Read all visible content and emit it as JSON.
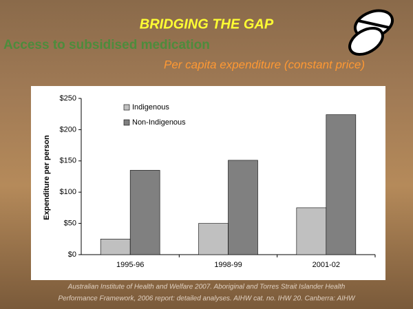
{
  "header": {
    "title": "BRIDGING THE GAP",
    "subtitle": "Access to subsidised medication",
    "tagline": "Per capita expenditure (constant price)"
  },
  "chart_data": {
    "type": "bar",
    "categories": [
      "1995-96",
      "1998-99",
      "2001-02"
    ],
    "series": [
      {
        "name": "Indigenous",
        "color": "#c0c0c0",
        "values": [
          25,
          50,
          75
        ]
      },
      {
        "name": "Non-Indigenous",
        "color": "#808080",
        "values": [
          135,
          151,
          224
        ]
      }
    ],
    "y_label": "Expenditure per person",
    "ylim": [
      0,
      250
    ],
    "yticks": [
      {
        "value": 0,
        "label": "$0"
      },
      {
        "value": 50,
        "label": "$50"
      },
      {
        "value": 100,
        "label": "$100"
      },
      {
        "value": 150,
        "label": "$150"
      },
      {
        "value": 200,
        "label": "$200"
      },
      {
        "value": 250,
        "label": "$250"
      }
    ]
  },
  "footer": {
    "source": [
      "Australian Institute of Health and Welfare 2007. Aboriginal and Torres Strait Islander Health",
      "Performance Framework, 2006 report: detailed analyses. AIHW cat. no. IHW 20. Canberra: AIHW"
    ]
  }
}
